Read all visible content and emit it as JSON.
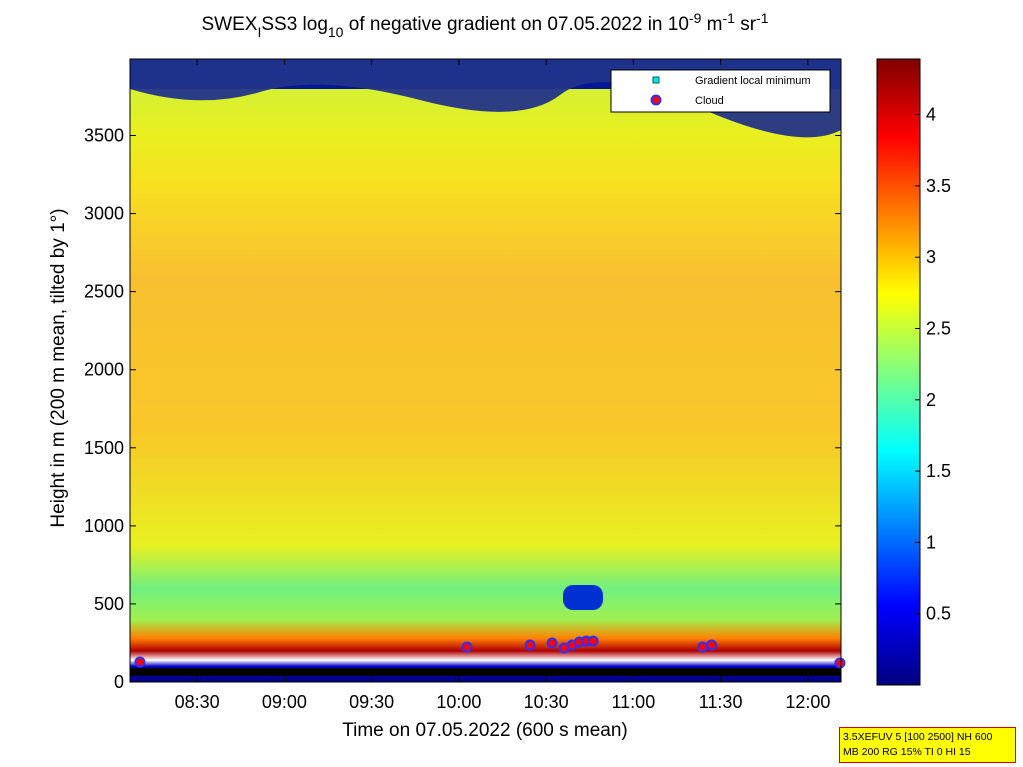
{
  "chart_data": {
    "type": "scatter",
    "title_parts": [
      "SWEX",
      "I",
      "SS3 log",
      "10",
      " of negative gradient on 07.05.2022 in 10",
      "-9",
      " m",
      "-1",
      " sr",
      "-1"
    ],
    "xlabel": "Time on 07.05.2022 (600 s mean)",
    "ylabel": "Height in m (200 m mean, tilted by 1°)",
    "xlim": [
      8.115,
      12.19
    ],
    "ylim": [
      0,
      3990
    ],
    "xticks": [
      {
        "value": 8.5,
        "label": "08:30"
      },
      {
        "value": 9,
        "label": "09:00"
      },
      {
        "value": 9.5,
        "label": "09:30"
      },
      {
        "value": 10,
        "label": "10:00"
      },
      {
        "value": 10.5,
        "label": "10:30"
      },
      {
        "value": 11,
        "label": "11:00"
      },
      {
        "value": 11.5,
        "label": "11:30"
      },
      {
        "value": 12,
        "label": "12:00"
      }
    ],
    "yticks": [
      0,
      500,
      1000,
      1500,
      2000,
      2500,
      3000,
      3500
    ],
    "colorbar": {
      "colormap": "jet",
      "lim": [
        0,
        4.39
      ],
      "ticks": [
        0.5,
        1,
        1.5,
        2,
        2.5,
        3,
        3.5,
        4
      ]
    },
    "legend_position": "upper right",
    "series": [
      {
        "name": "Gradient local minimum",
        "color": "#00e5e5",
        "marker": "square",
        "x": [],
        "y": []
      },
      {
        "name": "Cloud",
        "color": "#ff0000",
        "marker": "circle",
        "x": [
          8.172,
          10.046,
          10.408,
          10.534,
          10.603,
          10.649,
          10.69,
          10.73,
          10.77,
          11.397,
          11.448,
          12.184
        ],
        "y": [
          128,
          224,
          237,
          250,
          218,
          237,
          256,
          262,
          262,
          224,
          237,
          122
        ]
      }
    ],
    "info": [
      "3.5XEFUV 5 [100 2500] NH 600",
      "MB 200 RG 15% TI 0 HI 15"
    ]
  }
}
